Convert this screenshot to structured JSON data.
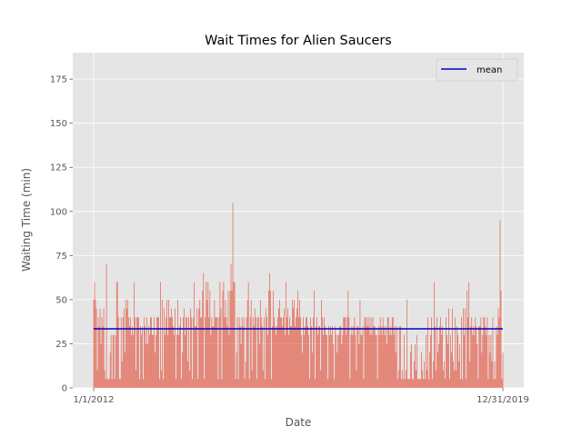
{
  "chart_data": {
    "type": "bar",
    "title": "Wait Times for Alien Saucers",
    "xlabel": "Date",
    "ylabel": "Waiting Time (min)",
    "x_tick_labels": [
      "1/1/2012",
      "12/31/2019"
    ],
    "y_ticks": [
      0,
      25,
      50,
      75,
      100,
      125,
      150,
      175
    ],
    "ylim": [
      0,
      190
    ],
    "grid": true,
    "legend": {
      "placement": "top-right",
      "entries": [
        "mean"
      ]
    },
    "mean_value": 33.5,
    "colors": {
      "bars": "#e24a33",
      "mean": "#0000cc",
      "background": "#e5e5e5",
      "grid": "#ffffff"
    },
    "values": [
      50,
      60,
      50,
      45,
      10,
      40,
      35,
      45,
      25,
      40,
      35,
      45,
      10,
      5,
      70,
      5,
      5,
      5,
      20,
      30,
      5,
      30,
      30,
      5,
      30,
      60,
      60,
      40,
      5,
      5,
      40,
      15,
      40,
      45,
      20,
      50,
      45,
      50,
      40,
      35,
      40,
      30,
      35,
      30,
      60,
      40,
      10,
      40,
      40,
      40,
      5,
      35,
      30,
      35,
      5,
      40,
      35,
      25,
      40,
      25,
      35,
      30,
      40,
      40,
      30,
      30,
      40,
      20,
      30,
      40,
      40,
      40,
      5,
      60,
      10,
      50,
      5,
      45,
      30,
      40,
      50,
      30,
      50,
      40,
      40,
      45,
      40,
      35,
      30,
      45,
      5,
      30,
      50,
      30,
      35,
      40,
      5,
      20,
      40,
      45,
      30,
      40,
      40,
      15,
      40,
      10,
      45,
      40,
      5,
      40,
      60,
      35,
      35,
      45,
      5,
      45,
      50,
      40,
      40,
      55,
      65,
      5,
      40,
      60,
      50,
      60,
      40,
      55,
      30,
      40,
      35,
      35,
      50,
      40,
      40,
      40,
      5,
      40,
      60,
      45,
      5,
      55,
      60,
      40,
      50,
      40,
      35,
      55,
      30,
      55,
      70,
      55,
      105,
      60,
      60,
      5,
      20,
      40,
      5,
      40,
      35,
      25,
      40,
      35,
      40,
      5,
      15,
      40,
      50,
      60,
      5,
      40,
      50,
      10,
      40,
      35,
      45,
      40,
      5,
      40,
      40,
      25,
      50,
      40,
      35,
      10,
      40,
      5,
      45,
      40,
      30,
      55,
      65,
      55,
      5,
      35,
      55,
      40,
      35,
      30,
      35,
      40,
      45,
      50,
      40,
      40,
      35,
      40,
      45,
      30,
      60,
      40,
      45,
      30,
      40,
      35,
      35,
      50,
      45,
      50,
      35,
      40,
      45,
      55,
      40,
      50,
      40,
      30,
      20,
      40,
      30,
      35,
      40,
      40,
      35,
      30,
      5,
      40,
      35,
      20,
      40,
      55,
      5,
      35,
      40,
      30,
      35,
      35,
      10,
      50,
      40,
      30,
      40,
      35,
      30,
      30,
      5,
      35,
      30,
      35,
      30,
      35,
      25,
      5,
      35,
      30,
      20,
      30,
      30,
      35,
      35,
      25,
      30,
      40,
      40,
      40,
      30,
      40,
      55,
      40,
      5,
      30,
      35,
      30,
      35,
      40,
      30,
      10,
      35,
      35,
      25,
      50,
      30,
      30,
      35,
      5,
      40,
      40,
      35,
      40,
      35,
      40,
      30,
      40,
      30,
      40,
      35,
      35,
      30,
      30,
      5,
      35,
      30,
      40,
      35,
      30,
      40,
      35,
      30,
      35,
      25,
      40,
      40,
      30,
      35,
      30,
      40,
      40,
      30,
      35,
      20,
      35,
      5,
      10,
      35,
      35,
      5,
      10,
      5,
      30,
      5,
      10,
      50,
      5,
      5,
      5,
      20,
      25,
      5,
      5,
      15,
      25,
      10,
      30,
      5,
      5,
      5,
      5,
      20,
      10,
      5,
      15,
      5,
      30,
      10,
      40,
      5,
      20,
      30,
      40,
      5,
      15,
      60,
      35,
      10,
      40,
      20,
      25,
      35,
      40,
      30,
      35,
      10,
      15,
      5,
      40,
      30,
      25,
      45,
      5,
      30,
      20,
      45,
      15,
      10,
      40,
      10,
      35,
      30,
      15,
      25,
      5,
      40,
      5,
      45,
      30,
      45,
      5,
      55,
      40,
      60,
      15,
      35,
      40,
      30,
      35,
      30,
      40,
      35,
      25,
      5,
      35,
      35,
      40,
      20,
      30,
      40,
      40,
      35,
      30,
      40,
      5,
      30,
      20,
      30,
      15,
      40,
      5,
      15,
      5,
      35,
      30,
      45,
      40,
      95,
      55,
      5,
      20
    ]
  }
}
